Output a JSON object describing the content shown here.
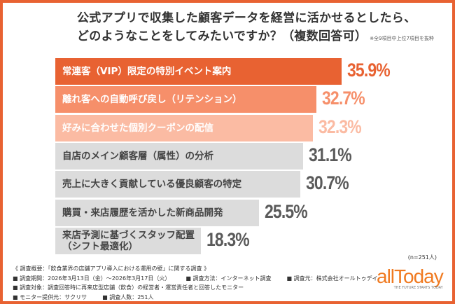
{
  "title_lines": [
    "公式アプリで収集した顧客データを経営に活かせるとしたら、",
    "どのようなことをしてみたいですか？（複数回答可）"
  ],
  "title_note": "※全9項目中上位7項目を抜粋",
  "chart_data": {
    "type": "bar",
    "orientation": "horizontal",
    "categories": [
      "常連客（VIP）限定の特別イベント案内",
      "離れ客への自動呼び戻し（リテンション）",
      "好みに合わせた個別クーポンの配信",
      "自店のメイン顧客層（属性）の分析",
      "売上に大きく貢献している優良顧客の特定",
      "購買・来店履歴を活かした新商品開発",
      "来店予測に基づくスタッフ配置（シフト最適化）"
    ],
    "values": [
      35.9,
      32.7,
      32.3,
      31.1,
      30.7,
      25.5,
      18.3
    ],
    "value_labels": [
      "35.9%",
      "32.7%",
      "32.3%",
      "31.1%",
      "30.7%",
      "25.5%",
      "18.3%"
    ],
    "bar_colors": [
      "#e86232",
      "#f68f6a",
      "#fbbba3",
      "#dcdcdc",
      "#dcdcdc",
      "#dcdcdc",
      "#dcdcdc"
    ],
    "label_colors": [
      "#ffffff",
      "#ffffff",
      "#ffffff",
      "#444444",
      "#444444",
      "#444444",
      "#444444"
    ],
    "value_colors": [
      "#e86232",
      "#f68f6a",
      "#fbbba3",
      "#5a5a5a",
      "#5a5a5a",
      "#5a5a5a",
      "#5a5a5a"
    ],
    "xlim": [
      0,
      35.9
    ],
    "grid": false
  },
  "sample_size": "(n=251人)",
  "footer": {
    "heading": "《 調査概要：「飲食業界の店舗アプリ導入における運用の壁」に関する調査 》",
    "rows": [
      [
        "■ 調査期間：2026年3月13日（金）〜2026年3月17日（火）",
        "■ 調査方法：インターネット調査",
        "■ 調査元：株式会社オールトゥデイ"
      ],
      [
        "■ 調査対象：調査回答時に再来店型店舗（飲食）の経営者・運営責任者と回答したモニター"
      ],
      [
        "■ モニター提供元：サクリサ",
        "■ 調査人数：251人"
      ]
    ]
  },
  "logo": {
    "name": "allToday",
    "tagline": "THE FUTURE STARTS TODAY"
  },
  "accent": "#e86232"
}
